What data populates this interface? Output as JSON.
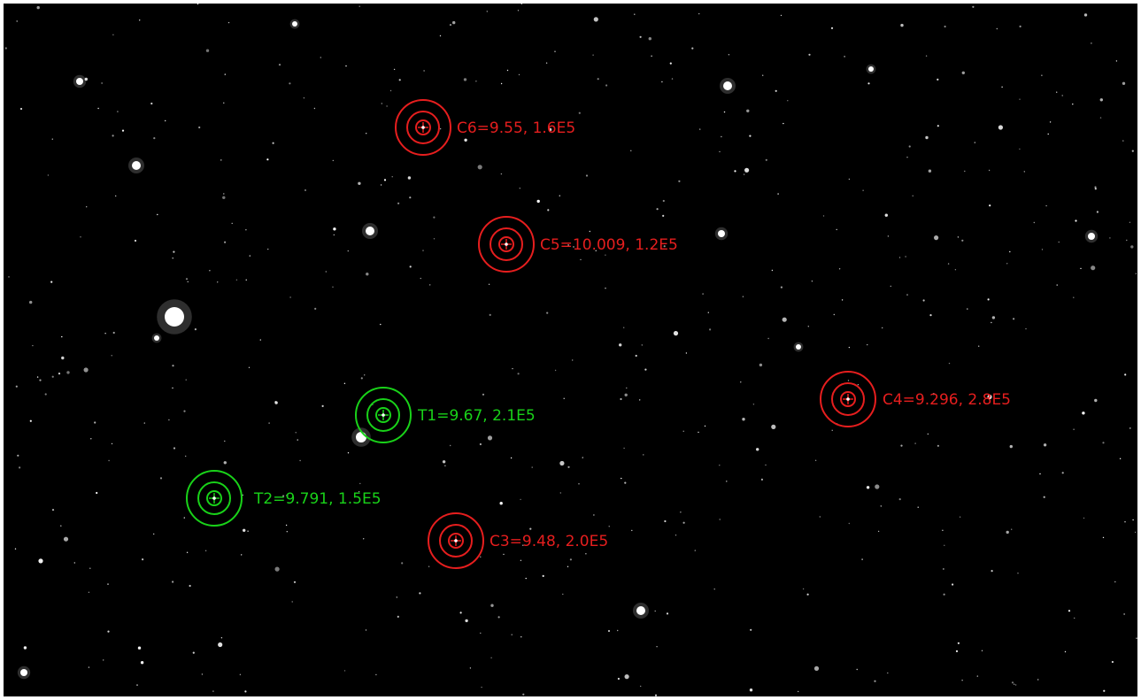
{
  "image": {
    "background_color": "#000000",
    "frame_color": "#ffffff"
  },
  "colors": {
    "comparison": "#e61e1e",
    "target": "#19d219",
    "star": "#ffffff"
  },
  "apertures": [
    {
      "id": "C6",
      "kind": "comparison",
      "label": "C6=9.55, 1.6E5"
    },
    {
      "id": "C5",
      "kind": "comparison",
      "label": "C5=10.009, 1.2E5"
    },
    {
      "id": "T1",
      "kind": "target",
      "label": "T1=9.67, 2.1E5"
    },
    {
      "id": "C4",
      "kind": "comparison",
      "label": "C4=9.296, 2.8E5"
    },
    {
      "id": "T2",
      "kind": "target",
      "label": "T2=9.791, 1.5E5"
    },
    {
      "id": "C3",
      "kind": "comparison",
      "label": "C3=9.48, 2.0E5"
    }
  ]
}
